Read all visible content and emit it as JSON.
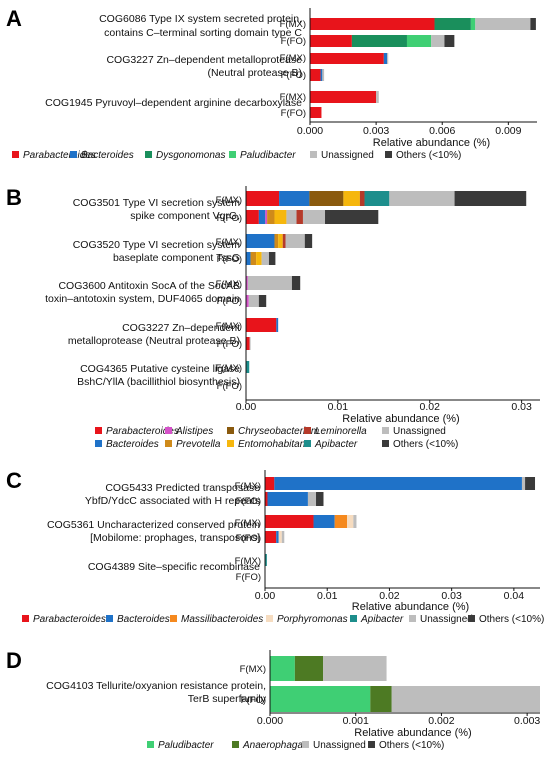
{
  "colors": {
    "Parabacteroides": "#e8141b",
    "Bacteroides": "#1f72c8",
    "Dysgonomonas": "#1a8f5c",
    "Paludibacter": "#3fcf74",
    "Unassigned": "#bdbdbd",
    "Others": "#3a3a3a",
    "Alistipes": "#d552c9",
    "Chryseobacterium": "#8a5a0e",
    "Leminorella": "#b53a2a",
    "Prevotella": "#cf8a1a",
    "Entomohabitans": "#f6b70d",
    "Apibacter": "#1d8e8c",
    "Massilibacteroides": "#f5891e",
    "Porphyromonas": "#f6dcc0",
    "Anaerophaga": "#4d7a23"
  },
  "chart_data": [
    {
      "panel": "A",
      "type": "bar",
      "orientation": "horizontal",
      "stacked": true,
      "xlabel": "Relative abundance (%)",
      "xlim": [
        0,
        0.0103
      ],
      "xticks": [
        0,
        0.003,
        0.006,
        0.009
      ],
      "xtick_labels": [
        "0.000",
        "0.003",
        "0.006",
        "0.009"
      ],
      "groups": [
        {
          "label": [
            "COG6086 Type IX system secreted protein,",
            "contains C–terminal sorting domain type C"
          ],
          "rows": [
            {
              "name": "F(MX)",
              "segments": [
                [
                  "Parabacteroides",
                  0.00565
                ],
                [
                  "Dysgonomonas",
                  0.00165
                ],
                [
                  "Paludibacter",
                  0.0002
                ],
                [
                  "Unassigned",
                  0.0025
                ],
                [
                  "Others",
                  0.00025
                ]
              ]
            },
            {
              "name": "F(FO)",
              "segments": [
                [
                  "Parabacteroides",
                  0.0019
                ],
                [
                  "Dysgonomonas",
                  0.0025
                ],
                [
                  "Paludibacter",
                  0.0011
                ],
                [
                  "Unassigned",
                  0.0006
                ],
                [
                  "Others",
                  0.00045
                ]
              ]
            }
          ]
        },
        {
          "label": [
            "COG3227 Zn–dependent metalloprotease",
            "(Neutral protease B)"
          ],
          "rows": [
            {
              "name": "F(MX)",
              "segments": [
                [
                  "Parabacteroides",
                  0.00335
                ],
                [
                  "Bacteroides",
                  0.00015
                ],
                [
                  "Unassigned",
                  5e-05
                ]
              ]
            },
            {
              "name": "F(FO)",
              "segments": [
                [
                  "Parabacteroides",
                  0.00048
                ],
                [
                  "Bacteroides",
                  8e-05
                ],
                [
                  "Unassigned",
                  8e-05
                ]
              ]
            }
          ]
        },
        {
          "label": [
            "COG1945 Pyruvoyl–dependent arginine decarboxylase"
          ],
          "rows": [
            {
              "name": "F(MX)",
              "segments": [
                [
                  "Parabacteroides",
                  0.003
                ],
                [
                  "Unassigned",
                  0.00012
                ]
              ]
            },
            {
              "name": "F(FO)",
              "segments": [
                [
                  "Parabacteroides",
                  0.00052
                ]
              ]
            }
          ]
        }
      ],
      "legend": [
        {
          "name": "Parabacteroides",
          "italic": true
        },
        {
          "name": "Bacteroides",
          "italic": true
        },
        {
          "name": "Dysgonomonas",
          "italic": true
        },
        {
          "name": "Paludibacter",
          "italic": true
        },
        {
          "name": "Unassigned",
          "italic": false
        },
        {
          "name": "Others (<10%)",
          "key": "Others",
          "italic": false
        }
      ]
    },
    {
      "panel": "B",
      "type": "bar",
      "orientation": "horizontal",
      "stacked": true,
      "xlabel": "Relative abundance (%)",
      "xlim": [
        0,
        0.032
      ],
      "xticks": [
        0,
        0.01,
        0.02,
        0.03
      ],
      "xtick_labels": [
        "0.00",
        "0.01",
        "0.02",
        "0.03"
      ],
      "groups": [
        {
          "label": [
            "COG3501 Type VI secretion system",
            "spike component VgrG,"
          ],
          "rows": [
            {
              "name": "F(MX)",
              "segments": [
                [
                  "Parabacteroides",
                  0.0036
                ],
                [
                  "Bacteroides",
                  0.0033
                ],
                [
                  "Chryseobacterium",
                  0.0037
                ],
                [
                  "Entomohabitans",
                  0.0018
                ],
                [
                  "Leminorella",
                  0.0005
                ],
                [
                  "Apibacter",
                  0.0027
                ],
                [
                  "Unassigned",
                  0.0071
                ],
                [
                  "Others",
                  0.0078
                ]
              ]
            },
            {
              "name": "F(FO)",
              "segments": [
                [
                  "Parabacteroides",
                  0.0014
                ],
                [
                  "Bacteroides",
                  0.0007
                ],
                [
                  "Alistipes",
                  0.0002
                ],
                [
                  "Prevotella",
                  0.0008
                ],
                [
                  "Entomohabitans",
                  0.0013
                ],
                [
                  "Unassigned",
                  0.0011
                ],
                [
                  "Leminorella",
                  0.0007
                ],
                [
                  "Unassigned",
                  0.0024
                ],
                [
                  "Others",
                  0.0058
                ]
              ]
            }
          ]
        },
        {
          "label": [
            "COG3520 Type VI secretion system",
            "baseplate component TssG"
          ],
          "rows": [
            {
              "name": "F(MX)",
              "segments": [
                [
                  "Bacteroides",
                  0.0031
                ],
                [
                  "Prevotella",
                  0.0004
                ],
                [
                  "Entomohabitans",
                  0.0005
                ],
                [
                  "Leminorella",
                  0.0003
                ],
                [
                  "Unassigned",
                  0.0021
                ],
                [
                  "Others",
                  0.0008
                ]
              ]
            },
            {
              "name": "F(FO)",
              "segments": [
                [
                  "Bacteroides",
                  0.0005
                ],
                [
                  "Prevotella",
                  0.0006
                ],
                [
                  "Entomohabitans",
                  0.0006
                ],
                [
                  "Unassigned",
                  0.0008
                ],
                [
                  "Others",
                  0.0007
                ]
              ]
            }
          ]
        },
        {
          "label": [
            "COG3600 Antitoxin SocA of the SocAB",
            "toxin–antotoxin system, DUF4065 domain"
          ],
          "rows": [
            {
              "name": "F(MX)",
              "segments": [
                [
                  "Alistipes",
                  0.0002
                ],
                [
                  "Unassigned",
                  0.0048
                ],
                [
                  "Others",
                  0.0009
                ]
              ]
            },
            {
              "name": "F(FO)",
              "segments": [
                [
                  "Alistipes",
                  0.0003
                ],
                [
                  "Unassigned",
                  0.0011
                ],
                [
                  "Others",
                  0.0008
                ]
              ]
            }
          ]
        },
        {
          "label": [
            "COG3227 Zn–dependent",
            "metalloprotease (Neutral protease B)"
          ],
          "rows": [
            {
              "name": "F(MX)",
              "segments": [
                [
                  "Parabacteroides",
                  0.0033
                ],
                [
                  "Bacteroides",
                  0.0002
                ]
              ]
            },
            {
              "name": "F(FO)",
              "segments": [
                [
                  "Parabacteroides",
                  0.0004
                ],
                [
                  "Unassigned",
                  0.0001
                ]
              ]
            }
          ]
        },
        {
          "label": [
            "COG4365 Putative cysteine ligase",
            "BshC/YllA (bacillithiol biosynthesis)"
          ],
          "rows": [
            {
              "name": "F(MX)",
              "segments": [
                [
                  "Apibacter",
                  0.00035
                ]
              ]
            },
            {
              "name": "F(FO)",
              "segments": []
            }
          ]
        }
      ],
      "legend": [
        {
          "name": "Parabacteroides",
          "italic": true
        },
        {
          "name": "Alistipes",
          "italic": true
        },
        {
          "name": "Chryseobacterium",
          "italic": true
        },
        {
          "name": "Leminorella",
          "italic": true
        },
        {
          "name": "Unassigned",
          "italic": false
        },
        {
          "name": "Bacteroides",
          "italic": true
        },
        {
          "name": "Prevotella",
          "italic": true
        },
        {
          "name": "Entomohabitans",
          "italic": true
        },
        {
          "name": "Apibacter",
          "italic": true
        },
        {
          "name": "Others (<10%)",
          "key": "Others",
          "italic": false
        }
      ]
    },
    {
      "panel": "C",
      "type": "bar",
      "orientation": "horizontal",
      "stacked": true,
      "xlabel": "Relative abundance (%)",
      "xlim": [
        0,
        0.0442
      ],
      "xticks": [
        0,
        0.01,
        0.02,
        0.03,
        0.04
      ],
      "xtick_labels": [
        "0.00",
        "0.01",
        "0.02",
        "0.03",
        "0.04"
      ],
      "groups": [
        {
          "label": [
            "COG5433 Predicted transposase",
            "YbfD/YdcC associated with H repeats"
          ],
          "rows": [
            {
              "name": "F(MX)",
              "segments": [
                [
                  "Parabacteroides",
                  0.0015
                ],
                [
                  "Bacteroides",
                  0.0398
                ],
                [
                  "Unassigned",
                  0.0005
                ],
                [
                  "Others",
                  0.0016
                ]
              ]
            },
            {
              "name": "F(FO)",
              "segments": [
                [
                  "Parabacteroides",
                  0.0004
                ],
                [
                  "Bacteroides",
                  0.0065
                ],
                [
                  "Unassigned",
                  0.0013
                ],
                [
                  "Others",
                  0.0012
                ]
              ]
            }
          ]
        },
        {
          "label": [
            "COG5361 Uncharacterized conserved protein",
            "[Mobilome: prophages, transposons]"
          ],
          "rows": [
            {
              "name": "F(MX)",
              "segments": [
                [
                  "Parabacteroides",
                  0.0078
                ],
                [
                  "Bacteroides",
                  0.0034
                ],
                [
                  "Massilibacteroides",
                  0.002
                ],
                [
                  "Porphyromonas",
                  0.001
                ],
                [
                  "Unassigned",
                  0.0005
                ]
              ]
            },
            {
              "name": "F(FO)",
              "segments": [
                [
                  "Parabacteroides",
                  0.0018
                ],
                [
                  "Bacteroides",
                  0.0004
                ],
                [
                  "Porphyromonas",
                  0.0005
                ],
                [
                  "Unassigned",
                  0.0004
                ]
              ]
            }
          ]
        },
        {
          "label": [
            "COG4389 Site–specific recombinase"
          ],
          "rows": [
            {
              "name": "F(MX)",
              "segments": [
                [
                  "Apibacter",
                  0.0003
                ]
              ]
            },
            {
              "name": "F(FO)",
              "segments": []
            }
          ]
        }
      ],
      "legend": [
        {
          "name": "Parabacteroides",
          "italic": true
        },
        {
          "name": "Bacteroides",
          "italic": true
        },
        {
          "name": "Massilibacteroides",
          "italic": true
        },
        {
          "name": "Porphyromonas",
          "italic": true
        },
        {
          "name": "Apibacter",
          "italic": true
        },
        {
          "name": "Unassigned",
          "italic": false
        },
        {
          "name": "Others (<10%)",
          "key": "Others",
          "italic": false
        }
      ]
    },
    {
      "panel": "D",
      "type": "bar",
      "orientation": "horizontal",
      "stacked": true,
      "xlabel": "Relative abundance (%)",
      "xlim": [
        0,
        0.00315
      ],
      "xticks": [
        0,
        0.001,
        0.002,
        0.003
      ],
      "xtick_labels": [
        "0.000",
        "0.001",
        "0.002",
        "0.003"
      ],
      "groups": [
        {
          "label": [
            "COG4103 Tellurite/oxyanion resistance protein,",
            "TerB superfamily"
          ],
          "rows": [
            {
              "name": "F(MX)",
              "segments": [
                [
                  "Paludibacter",
                  0.00029
                ],
                [
                  "Anaerophaga",
                  0.00033
                ],
                [
                  "Unassigned",
                  0.00074
                ]
              ]
            },
            {
              "name": "F(FO)",
              "segments": [
                [
                  "Paludibacter",
                  0.00117
                ],
                [
                  "Anaerophaga",
                  0.00025
                ],
                [
                  "Unassigned",
                  0.00173
                ]
              ]
            }
          ]
        }
      ],
      "legend": [
        {
          "name": "Paludibacter",
          "italic": true
        },
        {
          "name": "Anaerophaga",
          "italic": true
        },
        {
          "name": "Unassigned",
          "italic": false
        },
        {
          "name": "Others (<10%)",
          "key": "Others",
          "italic": false
        }
      ]
    }
  ]
}
